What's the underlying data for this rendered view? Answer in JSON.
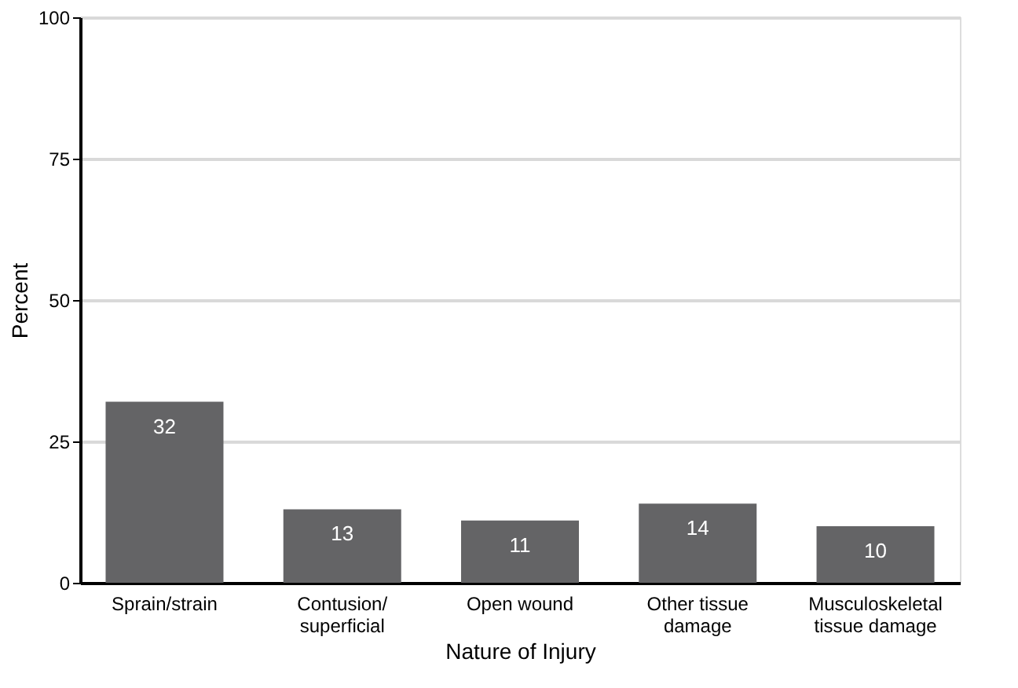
{
  "chart_data": {
    "type": "bar",
    "xlabel": "Nature of Injury",
    "ylabel": "Percent",
    "categories": [
      "Sprain/strain",
      "Contusion/\nsuperficial",
      "Open wound",
      "Other tissue\ndamage",
      "Musculoskeletal\ntissue damage"
    ],
    "values": [
      32,
      13,
      11,
      14,
      10
    ],
    "color": "#646466",
    "ylim": [
      0,
      100
    ],
    "yticks": [
      0,
      25,
      50,
      75,
      100
    ],
    "grid": "y",
    "data_labels": true
  }
}
